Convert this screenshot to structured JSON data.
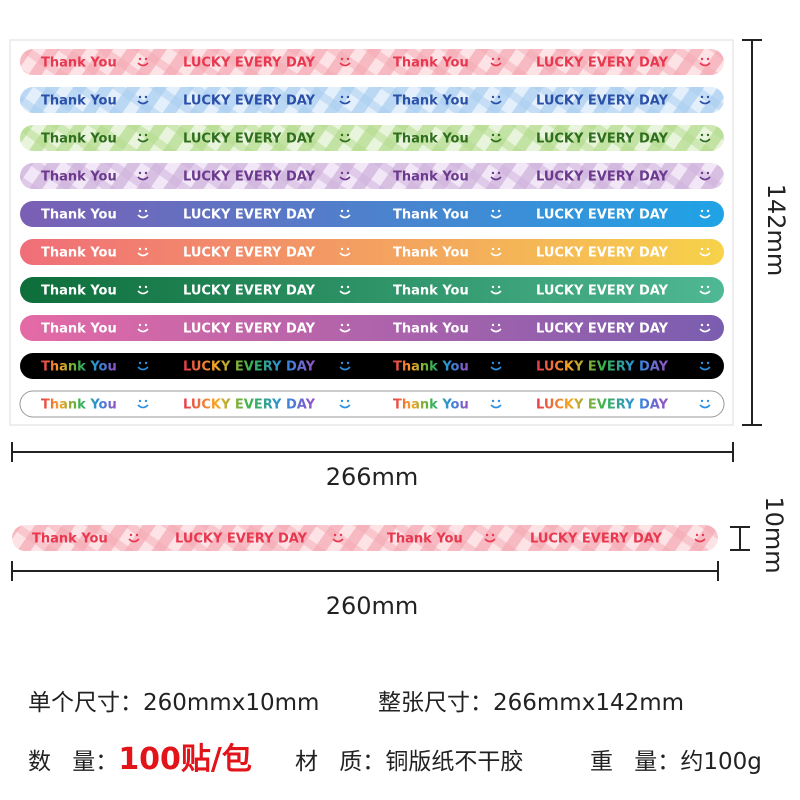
{
  "sheet": {
    "phrases": [
      "Thank You",
      "LUCKY EVERY DAY"
    ],
    "height": "142mm",
    "width": "266mm"
  },
  "strip": {
    "phrases": [
      "Thank You",
      "LUCKY EVERY DAY"
    ],
    "height": "10mm",
    "length": "260mm"
  },
  "specs": [
    {
      "label": "单个尺寸：",
      "value": "260mmx10mm"
    },
    {
      "label": "整张尺寸：",
      "value": "266mmx142mm"
    },
    {
      "label": "数 量：",
      "value": "100贴/包"
    },
    {
      "label": "材 质：",
      "value": "铜版纸不干胶"
    },
    {
      "label": "重 量：",
      "value": "约100g"
    }
  ]
}
